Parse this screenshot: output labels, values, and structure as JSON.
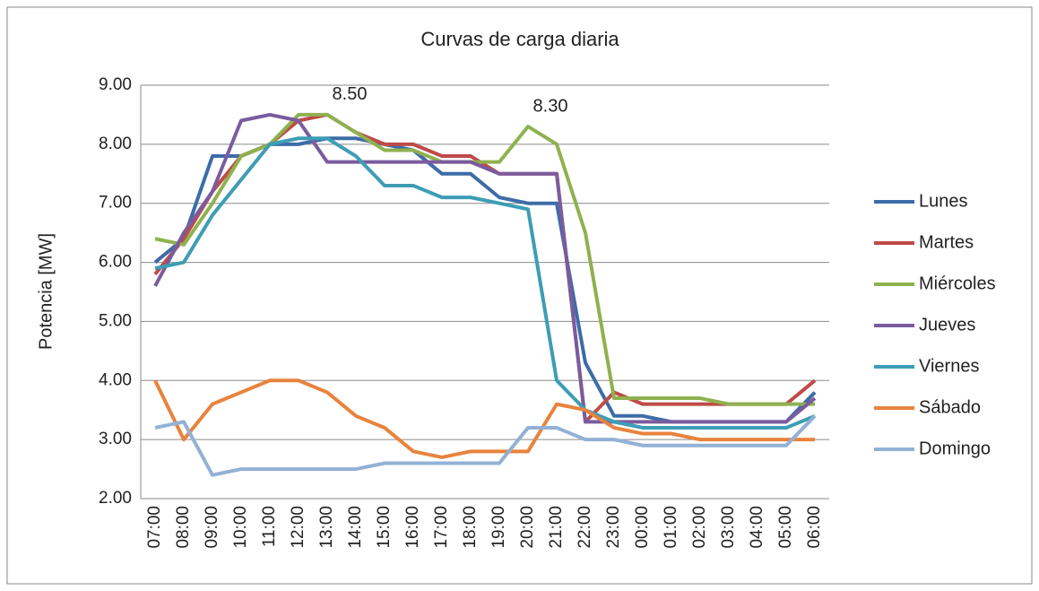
{
  "chart_data": {
    "type": "line",
    "title": "Curvas de carga diaria",
    "y_label": "Potencia [MW]",
    "categories": [
      "07:00",
      "08:00",
      "09:00",
      "10:00",
      "11:00",
      "12:00",
      "13:00",
      "14:00",
      "15:00",
      "16:00",
      "17:00",
      "18:00",
      "19:00",
      "20:00",
      "21:00",
      "22:00",
      "23:00",
      "00:00",
      "01:00",
      "02:00",
      "03:00",
      "04:00",
      "05:00",
      "06:00"
    ],
    "ylim": [
      2,
      9
    ],
    "yticks": [
      {
        "value": 2,
        "label": "2.00"
      },
      {
        "value": 3,
        "label": "3.00"
      },
      {
        "value": 4,
        "label": "4.00"
      },
      {
        "value": 5,
        "label": "5.00"
      },
      {
        "value": 6,
        "label": "6.00"
      },
      {
        "value": 7,
        "label": "7.00"
      },
      {
        "value": 8,
        "label": "8.00"
      },
      {
        "value": 9,
        "label": "9.00"
      }
    ],
    "grid": true,
    "legend": "right",
    "series": [
      {
        "name": "Lunes",
        "color": "#3d6ca8",
        "values": [
          6.0,
          6.4,
          7.8,
          7.8,
          8.0,
          8.0,
          8.1,
          8.1,
          8.0,
          7.9,
          7.5,
          7.5,
          7.1,
          7.0,
          7.0,
          4.3,
          3.4,
          3.4,
          3.3,
          3.3,
          3.3,
          3.3,
          3.3,
          3.8
        ]
      },
      {
        "name": "Martes",
        "color": "#be4b48",
        "values": [
          5.8,
          6.4,
          7.2,
          7.8,
          8.0,
          8.4,
          8.5,
          8.2,
          8.0,
          8.0,
          7.8,
          7.8,
          7.5,
          7.5,
          7.5,
          3.3,
          3.8,
          3.6,
          3.6,
          3.6,
          3.6,
          3.6,
          3.6,
          4.0
        ]
      },
      {
        "name": "Miércoles",
        "color": "#8fb14f",
        "values": [
          6.4,
          6.3,
          7.0,
          7.8,
          8.0,
          8.5,
          8.5,
          8.2,
          7.9,
          7.9,
          7.7,
          7.7,
          7.7,
          8.3,
          8.0,
          6.5,
          3.7,
          3.7,
          3.7,
          3.7,
          3.6,
          3.6,
          3.6,
          3.6
        ],
        "value_labels": [
          null,
          null,
          null,
          null,
          null,
          null,
          "8.50",
          null,
          null,
          null,
          null,
          null,
          null,
          "8.30",
          null,
          null,
          null,
          null,
          null,
          null,
          null,
          null,
          null,
          null
        ]
      },
      {
        "name": "Jueves",
        "color": "#7a5c9e",
        "values": [
          5.6,
          6.5,
          7.2,
          8.4,
          8.5,
          8.4,
          7.7,
          7.7,
          7.7,
          7.7,
          7.7,
          7.7,
          7.5,
          7.5,
          7.5,
          3.3,
          3.3,
          3.3,
          3.3,
          3.3,
          3.3,
          3.3,
          3.3,
          3.7
        ]
      },
      {
        "name": "Viernes",
        "color": "#3d9db5",
        "values": [
          5.9,
          6.0,
          6.8,
          7.4,
          8.0,
          8.1,
          8.1,
          7.8,
          7.3,
          7.3,
          7.1,
          7.1,
          7.0,
          6.9,
          4.0,
          3.5,
          3.3,
          3.2,
          3.2,
          3.2,
          3.2,
          3.2,
          3.2,
          3.4
        ]
      },
      {
        "name": "Sábado",
        "color": "#e8833d",
        "values": [
          4.0,
          3.0,
          3.6,
          3.8,
          4.0,
          4.0,
          3.8,
          3.4,
          3.2,
          2.8,
          2.7,
          2.8,
          2.8,
          2.8,
          3.6,
          3.5,
          3.2,
          3.1,
          3.1,
          3.0,
          3.0,
          3.0,
          3.0,
          3.0
        ]
      },
      {
        "name": "Domingo",
        "color": "#93b1d6",
        "values": [
          3.2,
          3.3,
          2.4,
          2.5,
          2.5,
          2.5,
          2.5,
          2.5,
          2.6,
          2.6,
          2.6,
          2.6,
          2.6,
          3.2,
          3.2,
          3.0,
          3.0,
          2.9,
          2.9,
          2.9,
          2.9,
          2.9,
          2.9,
          3.4
        ]
      }
    ]
  }
}
